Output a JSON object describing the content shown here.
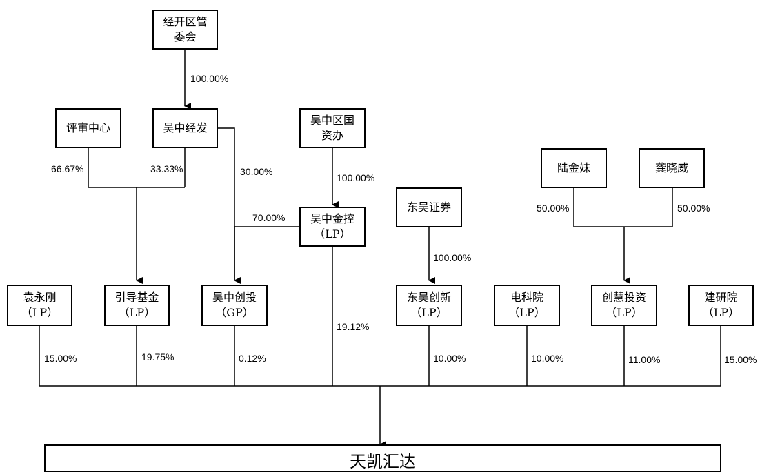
{
  "entities": {
    "jingkaiqu": {
      "line1": "经开区管",
      "line2": "委会"
    },
    "pingshen": {
      "line1": "评审中心"
    },
    "wuzhongjingfa": {
      "line1": "吴中经发"
    },
    "guoziban": {
      "line1": "吴中区国",
      "line2": "资办"
    },
    "wuzhongjinkong": {
      "line1": "吴中金控",
      "line2": "（LP）"
    },
    "dongwuzhengquan": {
      "line1": "东吴证券"
    },
    "lujinmei": {
      "line1": "陆金妹"
    },
    "gongxiaowei": {
      "line1": "龚晓威"
    },
    "yuanyonggang": {
      "line1": "袁永刚",
      "line2": "（LP）"
    },
    "yindaojijin": {
      "line1": "引导基金",
      "line2": "（LP）"
    },
    "wuzhongchuangtou": {
      "line1": "吴中创投",
      "line2": "（GP）"
    },
    "dongwuchuangxin": {
      "line1": "东吴创新",
      "line2": "（LP）"
    },
    "dianke": {
      "line1": "电科院",
      "line2": "（LP）"
    },
    "chuanghui": {
      "line1": "创慧投资",
      "line2": "（LP）"
    },
    "jianyan": {
      "line1": "建研院",
      "line2": "（LP）"
    },
    "target": {
      "line1": "天凯汇达"
    }
  },
  "percentages": {
    "jingkaiqu_to_jingfa": "100.00%",
    "pingshen_to_yindao": "66.67%",
    "jingfa_to_yindao": "33.33%",
    "jingfa_to_chuangtou": "30.00%",
    "guoziban_to_jinkong": "100.00%",
    "jinkong_to_chuangtou": "70.00%",
    "zhengquan_to_chuangxin": "100.00%",
    "lujinmei_to_chuanghui": "50.00%",
    "gongxiaowei_to_chuanghui": "50.00%",
    "yuanyonggang_to_target": "15.00%",
    "yindao_to_target": "19.75%",
    "chuangtou_to_target": "0.12%",
    "jinkong_to_target": "19.12%",
    "chuangxin_to_target": "10.00%",
    "dianke_to_target": "10.00%",
    "chuanghui_to_target": "11.00%",
    "jianyan_to_target": "15.00%"
  }
}
